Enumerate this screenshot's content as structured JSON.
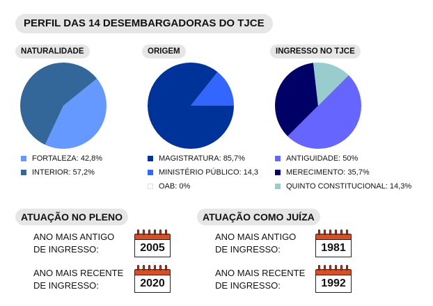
{
  "title": "PERFIL DAS 14 DESEMBARGADORAS DO TJCE",
  "chart_data": [
    {
      "type": "pie",
      "title": "NATURALIDADE",
      "slices": [
        {
          "label": "FORTALEZA: 42,8%",
          "value": 42.8,
          "color": "#6699ff"
        },
        {
          "label": "INTERIOR: 57,2%",
          "value": 57.2,
          "color": "#336699"
        }
      ]
    },
    {
      "type": "pie",
      "title": "ORIGEM",
      "slices": [
        {
          "label": "MAGISTRATURA: 85,7%",
          "value": 85.7,
          "color": "#003399"
        },
        {
          "label": "MINISTÉRIO PÚBLICO: 14,3",
          "value": 14.3,
          "color": "#3366ff"
        },
        {
          "label": "OAB: 0%",
          "value": 0,
          "color": "#ffffff"
        }
      ]
    },
    {
      "type": "pie",
      "title": "INGRESSO NO TJCE",
      "slices": [
        {
          "label": "ANTIGUIDADE: 50%",
          "value": 50,
          "color": "#6666ff"
        },
        {
          "label": "MERECIMENTO: 35,7%",
          "value": 35.7,
          "color": "#000066"
        },
        {
          "label": "QUINTO CONSTITUCIONAL: 14,3%",
          "value": 14.3,
          "color": "#99cccc"
        }
      ]
    }
  ],
  "pleno": {
    "heading": "ATUAÇÃO NO PLENO",
    "oldest_label_1": "ANO MAIS ANTIGO",
    "oldest_label_2": "DE INGRESSO:",
    "oldest_year": "2005",
    "newest_label_1": "ANO MAIS RECENTE",
    "newest_label_2": "DE INGRESSO:",
    "newest_year": "2020"
  },
  "juiza": {
    "heading": "ATUAÇÃO COMO JUÍZA",
    "oldest_label_1": "ANO MAIS ANTIGO",
    "oldest_label_2": "DE INGRESSO:",
    "oldest_year": "1981",
    "newest_label_1": "ANO MAIS RECENTE",
    "newest_label_2": "DE INGRESSO:",
    "newest_year": "1992"
  }
}
